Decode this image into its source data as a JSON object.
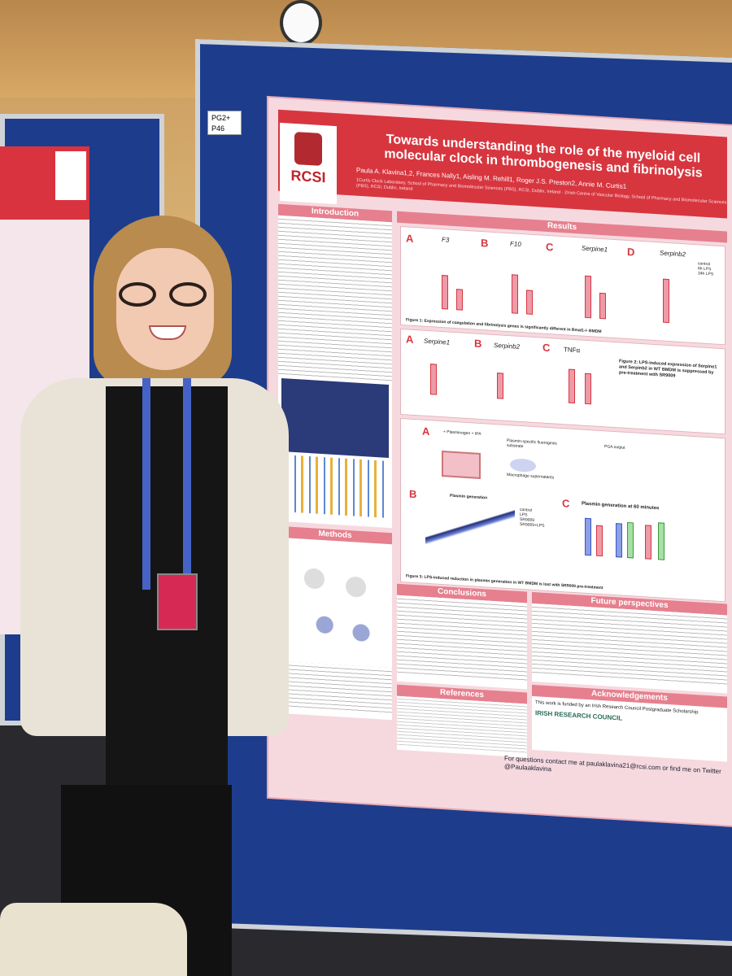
{
  "poster": {
    "tag_line1": "PG2+",
    "tag_line2": "P46",
    "title": "Towards understanding the role of the myeloid cell molecular clock in thrombogenesis and fibrinolysis",
    "authors": "Paula A. Klavina1,2, Frances Nally1, Aisling M. Rehill1, Roger J.S. Preston2, Annie M. Curtis1",
    "affiliation": "1Curtis Clock Laboratory, School of Pharmacy and Biomolecular Sciences (PBS), RCSI, Dublin, Ireland · 2Irish Centre of Vascular Biology, School of Pharmacy and Biomolecular Sciences (PBS), RCSI, Dublin, Ireland",
    "logo_text": "RCSI",
    "sections": {
      "introduction": "Introduction",
      "results": "Results",
      "methods": "Methods",
      "conclusions": "Conclusions",
      "future": "Future perspectives",
      "references": "References",
      "acknowledgements": "Acknowledgements"
    },
    "fig1": {
      "panels": [
        {
          "label": "A",
          "gene": "F3"
        },
        {
          "label": "B",
          "gene": "F10"
        },
        {
          "label": "C",
          "gene": "Serpine1"
        },
        {
          "label": "D",
          "gene": "Serpinb2"
        }
      ],
      "legend": [
        "control",
        "6h LPS",
        "24h LPS"
      ],
      "caption": "Figure 1: Expression of coagulation and fibrinolysis genes is significantly different in Bmal1-/- BMDM"
    },
    "fig2": {
      "panels": [
        {
          "label": "A",
          "gene": "Serpine1"
        },
        {
          "label": "B",
          "gene": "Serpinb2"
        },
        {
          "label": "C",
          "gene": "TNFα"
        }
      ],
      "caption": "Figure 2: LPS-induced expression of Serpine1 and Serpinb2 in WT BMDM is suppressed by pre-treatment with SR9009"
    },
    "fig3": {
      "a_label": "A",
      "b_label": "B",
      "c_label": "C",
      "step1": "+ Plasminogen + tPA",
      "step2": "Plasmin-specific fluorogenic substrate",
      "step3": "Macrophage supernatants",
      "output": "PGA output",
      "plasmin_title": "Plasmin generation",
      "plasmin60_title": "Plasmin generation at 60 minutes",
      "legend": [
        "control",
        "LPS",
        "SR9009",
        "SR9009+LPS"
      ],
      "caption": "Figure 3: LPS-induced reduction in plasmin generation in WT BMDM is lost with SR9009 pre-treatment"
    },
    "acknowledgement_text": "This work is funded by an Irish Research Council Postgraduate Scholarship",
    "funder": "IRISH RESEARCH COUNCIL",
    "contact": "For questions contact me at paulaklavina21@rcsi.com or find me on Twitter @Paulaaklavina"
  }
}
